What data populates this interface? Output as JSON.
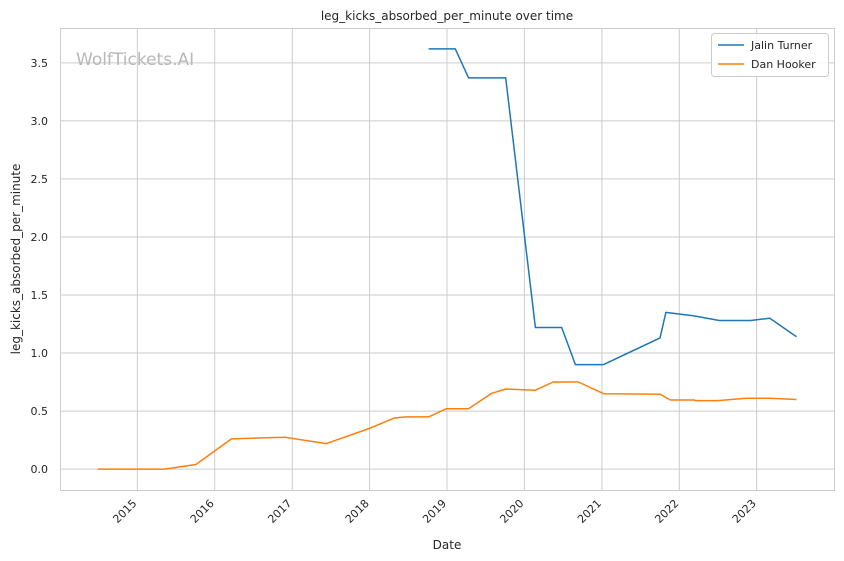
{
  "watermark": "WolfTickets.AI",
  "chart_data": {
    "type": "line",
    "title": "leg_kicks_absorbed_per_minute over time",
    "xlabel": "Date",
    "ylabel": "leg_kicks_absorbed_per_minute",
    "xlim": [
      "2014-01-01",
      "2024-01-01"
    ],
    "ylim": [
      -0.18,
      3.8
    ],
    "grid": true,
    "legend_position": "top-right",
    "x_ticks": [
      "2015",
      "2016",
      "2017",
      "2018",
      "2019",
      "2020",
      "2021",
      "2022",
      "2023"
    ],
    "y_ticks": [
      "0.0",
      "0.5",
      "1.0",
      "1.5",
      "2.0",
      "2.5",
      "3.0",
      "3.5"
    ],
    "series": [
      {
        "name": "Jalin Turner",
        "color": "#1f77b4",
        "points": [
          [
            "2018-10-06",
            3.62
          ],
          [
            "2019-02-09",
            3.62
          ],
          [
            "2019-04-13",
            3.37
          ],
          [
            "2019-10-05",
            3.37
          ],
          [
            "2020-02-22",
            1.22
          ],
          [
            "2020-06-25",
            1.22
          ],
          [
            "2020-08-29",
            0.9
          ],
          [
            "2021-01-09",
            0.9
          ],
          [
            "2021-10-02",
            1.13
          ],
          [
            "2021-10-30",
            1.35
          ],
          [
            "2022-03-12",
            1.32
          ],
          [
            "2022-07-09",
            1.28
          ],
          [
            "2022-12-03",
            1.28
          ],
          [
            "2023-03-04",
            1.3
          ],
          [
            "2023-07-08",
            1.14
          ]
        ]
      },
      {
        "name": "Dan Hooker",
        "color": "#ff7f0e",
        "points": [
          [
            "2014-06-28",
            0.0
          ],
          [
            "2015-05-10",
            0.0
          ],
          [
            "2015-10-04",
            0.04
          ],
          [
            "2016-03-20",
            0.26
          ],
          [
            "2016-11-27",
            0.275
          ],
          [
            "2017-06-11",
            0.22
          ],
          [
            "2017-12-30",
            0.35
          ],
          [
            "2018-04-28",
            0.44
          ],
          [
            "2018-06-23",
            0.45
          ],
          [
            "2018-10-06",
            0.45
          ],
          [
            "2018-12-29",
            0.52
          ],
          [
            "2019-04-13",
            0.52
          ],
          [
            "2019-07-27",
            0.65
          ],
          [
            "2019-10-05",
            0.69
          ],
          [
            "2020-02-22",
            0.68
          ],
          [
            "2020-05-16",
            0.75
          ],
          [
            "2020-09-12",
            0.75
          ],
          [
            "2021-01-09",
            0.65
          ],
          [
            "2021-10-02",
            0.645
          ],
          [
            "2021-11-20",
            0.595
          ],
          [
            "2022-03-12",
            0.595
          ],
          [
            "2022-03-19",
            0.59
          ],
          [
            "2022-07-02",
            0.59
          ],
          [
            "2022-11-12",
            0.61
          ],
          [
            "2023-03-04",
            0.61
          ],
          [
            "2023-07-08",
            0.6
          ]
        ]
      }
    ]
  }
}
